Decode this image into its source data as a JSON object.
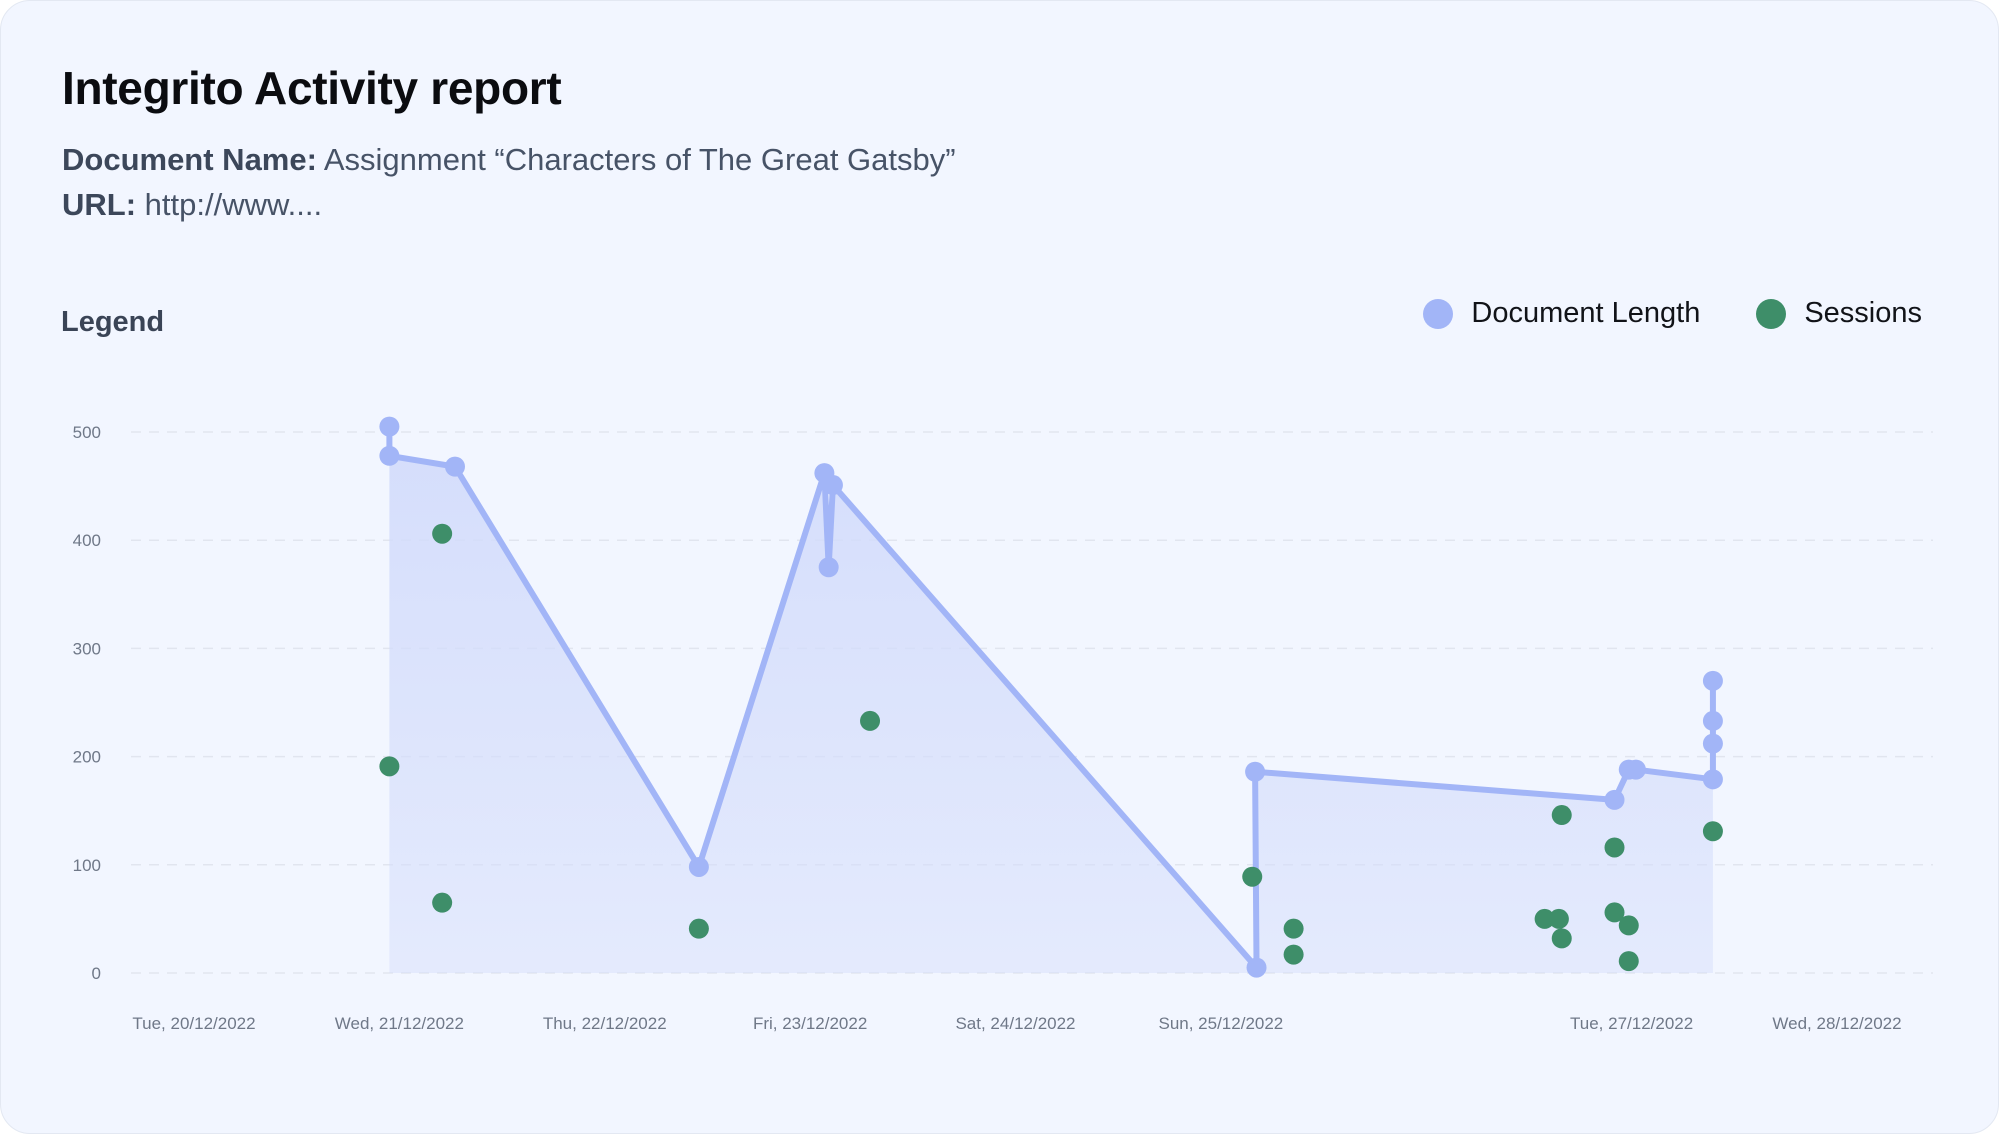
{
  "header": {
    "title": "Integrito Activity report",
    "doc_key": "Document Name:",
    "doc_value": "Assignment “Characters of The Great Gatsby”",
    "url_key": "URL:",
    "url_value": "http://www...."
  },
  "legend": {
    "heading": "Legend",
    "items": [
      {
        "label": "Document Length",
        "color": "#a2b5f7"
      },
      {
        "label": "Sessions",
        "color": "#3e8e69"
      }
    ]
  },
  "colors": {
    "length_line": "#a2b5f7",
    "length_fill": "#d3dcfb",
    "sessions": "#3e8e69",
    "grid": "#e1e5ef",
    "tick_text": "#6f7888",
    "background": "#f2f6ff"
  },
  "chart_data": {
    "type": "line",
    "title": "",
    "xlabel": "",
    "ylabel": "",
    "ylim": [
      0,
      500
    ],
    "y_ticks": [
      0,
      100,
      200,
      300,
      400,
      500
    ],
    "x_ticks": [
      {
        "x": "2022-12-20",
        "label": "Tue, 20/12/2022"
      },
      {
        "x": "2022-12-21",
        "label": "Wed, 21/12/2022"
      },
      {
        "x": "2022-12-22",
        "label": "Thu, 22/12/2022"
      },
      {
        "x": "2022-12-23",
        "label": "Fri, 23/12/2022"
      },
      {
        "x": "2022-12-24",
        "label": "Sat, 24/12/2022"
      },
      {
        "x": "2022-12-25",
        "label": "Sun, 25/12/2022"
      },
      {
        "x": "2022-12-27",
        "label": "Tue, 27/12/2022"
      },
      {
        "x": "2022-12-28",
        "label": "Wed, 28/12/2022"
      }
    ],
    "grid": true,
    "legend_position": "top-right",
    "series": [
      {
        "name": "Document Length",
        "kind": "line-area",
        "points": [
          {
            "x": "2022-12-20 22:50",
            "y": 505
          },
          {
            "x": "2022-12-20 22:50",
            "y": 478
          },
          {
            "x": "2022-12-21 06:30",
            "y": 468
          },
          {
            "x": "2022-12-22 11:00",
            "y": 98
          },
          {
            "x": "2022-12-23 01:40",
            "y": 462
          },
          {
            "x": "2022-12-23 02:10",
            "y": 375
          },
          {
            "x": "2022-12-23 02:40",
            "y": 451
          },
          {
            "x": "2022-12-25 04:10",
            "y": 5
          },
          {
            "x": "2022-12-25 04:00",
            "y": 186
          },
          {
            "x": "2022-12-26 22:00",
            "y": 160
          },
          {
            "x": "2022-12-26 23:40",
            "y": 188
          },
          {
            "x": "2022-12-27 00:30",
            "y": 188
          },
          {
            "x": "2022-12-27 09:30",
            "y": 179
          },
          {
            "x": "2022-12-27 09:30",
            "y": 212
          },
          {
            "x": "2022-12-27 09:30",
            "y": 233
          },
          {
            "x": "2022-12-27 09:30",
            "y": 270
          }
        ]
      },
      {
        "name": "Sessions",
        "kind": "scatter",
        "points": [
          {
            "x": "2022-12-20 22:50",
            "y": 191
          },
          {
            "x": "2022-12-21 05:00",
            "y": 406
          },
          {
            "x": "2022-12-21 05:00",
            "y": 65
          },
          {
            "x": "2022-12-22 11:00",
            "y": 41
          },
          {
            "x": "2022-12-23 07:00",
            "y": 233
          },
          {
            "x": "2022-12-25 03:40",
            "y": 89
          },
          {
            "x": "2022-12-25 08:30",
            "y": 41
          },
          {
            "x": "2022-12-25 08:30",
            "y": 17
          },
          {
            "x": "2022-12-26 13:50",
            "y": 50
          },
          {
            "x": "2022-12-26 15:30",
            "y": 50
          },
          {
            "x": "2022-12-26 15:50",
            "y": 146
          },
          {
            "x": "2022-12-26 15:50",
            "y": 32
          },
          {
            "x": "2022-12-26 22:00",
            "y": 116
          },
          {
            "x": "2022-12-26 22:00",
            "y": 56
          },
          {
            "x": "2022-12-26 23:40",
            "y": 44
          },
          {
            "x": "2022-12-26 23:40",
            "y": 11
          },
          {
            "x": "2022-12-27 09:30",
            "y": 131
          }
        ]
      }
    ]
  }
}
